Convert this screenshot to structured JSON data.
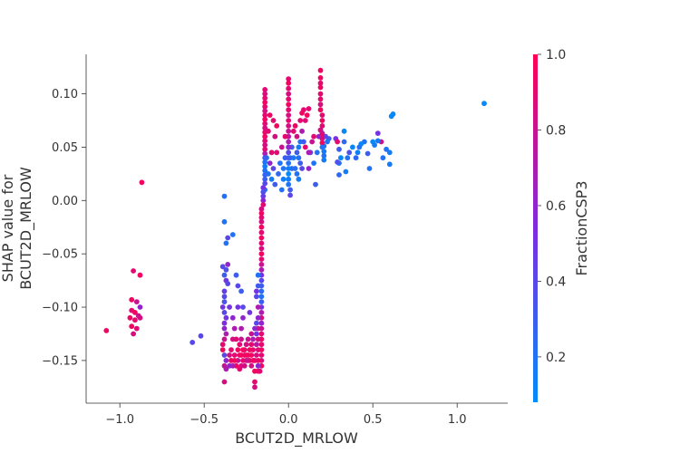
{
  "chart_data": {
    "type": "scatter",
    "xlabel": "BCUT2D_MRLOW",
    "ylabel_lines": [
      "SHAP value for",
      "BCUT2D_MRLOW"
    ],
    "xlim": [
      -1.2,
      1.3
    ],
    "ylim": [
      -0.19,
      0.137
    ],
    "xticks": [
      -1.0,
      -0.5,
      0.0,
      0.5,
      1.0
    ],
    "xtick_labels": [
      "−1.0",
      "−0.5",
      "0.0",
      "0.5",
      "1.0"
    ],
    "yticks": [
      0.1,
      0.05,
      0.0,
      -0.05,
      -0.1,
      -0.15
    ],
    "ytick_labels": [
      "0.10",
      "0.05",
      "0.00",
      "−0.05",
      "−0.10",
      "−0.15"
    ],
    "colorbar": {
      "label": "FractionCSP3",
      "range": [
        0.08,
        1.0
      ],
      "ticks": [
        1.0,
        0.8,
        0.6,
        0.4,
        0.2
      ],
      "tick_labels": [
        "1.0",
        "0.8",
        "0.6",
        "0.4",
        "0.2"
      ],
      "low_color": "#008bfb",
      "mid_color": "#7f2be0",
      "high_color": "#ff0052"
    },
    "points": [
      [
        1.16,
        0.091,
        0.1
      ],
      [
        0.61,
        0.079,
        0.1
      ],
      [
        0.62,
        0.081,
        0.1
      ],
      [
        0.6,
        0.045,
        0.15
      ],
      [
        0.58,
        0.048,
        0.2
      ],
      [
        0.6,
        0.034,
        0.15
      ],
      [
        0.55,
        0.055,
        0.8
      ],
      [
        0.56,
        0.04,
        0.2
      ],
      [
        0.53,
        0.056,
        0.15
      ],
      [
        0.5,
        0.055,
        0.1
      ],
      [
        0.51,
        0.052,
        0.15
      ],
      [
        0.48,
        0.03,
        0.2
      ],
      [
        0.47,
        0.044,
        0.3
      ],
      [
        0.53,
        0.063,
        0.5
      ],
      [
        0.45,
        0.055,
        0.2
      ],
      [
        0.43,
        0.053,
        0.1
      ],
      [
        0.42,
        0.05,
        0.2
      ],
      [
        0.41,
        0.045,
        0.15
      ],
      [
        0.4,
        0.04,
        0.25
      ],
      [
        0.38,
        0.05,
        0.1
      ],
      [
        0.36,
        0.045,
        0.35
      ],
      [
        0.35,
        0.04,
        0.2
      ],
      [
        0.34,
        0.027,
        0.15
      ],
      [
        0.33,
        0.065,
        0.1
      ],
      [
        0.33,
        0.055,
        0.25
      ],
      [
        0.3,
        0.035,
        0.2
      ],
      [
        0.31,
        0.04,
        0.1
      ],
      [
        0.3,
        0.048,
        0.3
      ],
      [
        0.29,
        0.036,
        0.35
      ],
      [
        0.3,
        0.024,
        0.25
      ],
      [
        0.28,
        0.058,
        0.5
      ],
      [
        0.29,
        0.055,
        0.9
      ],
      [
        0.24,
        0.058,
        0.3
      ],
      [
        0.23,
        0.055,
        0.2
      ],
      [
        0.22,
        0.06,
        0.4
      ],
      [
        0.21,
        0.051,
        0.2
      ],
      [
        0.2,
        0.063,
        0.5
      ],
      [
        0.19,
        0.066,
        0.8
      ],
      [
        0.15,
        0.06,
        0.9
      ],
      [
        0.14,
        0.055,
        0.8
      ],
      [
        0.13,
        0.045,
        0.4
      ],
      [
        0.15,
        0.035,
        0.2
      ],
      [
        0.16,
        0.015,
        0.3
      ],
      [
        0.12,
        0.045,
        0.7
      ],
      [
        0.17,
        0.045,
        0.2
      ],
      [
        0.18,
        0.06,
        0.6
      ],
      [
        0.12,
        0.03,
        0.6
      ],
      [
        0.1,
        0.05,
        0.9
      ],
      [
        0.1,
        0.075,
        0.9
      ],
      [
        0.09,
        0.085,
        0.9
      ],
      [
        0.11,
        0.08,
        0.95
      ],
      [
        0.12,
        0.086,
        0.9
      ],
      [
        0.08,
        0.065,
        0.7
      ],
      [
        0.07,
        0.055,
        0.2
      ],
      [
        0.06,
        0.05,
        0.15
      ],
      [
        0.05,
        0.045,
        0.3
      ],
      [
        0.06,
        0.04,
        0.2
      ],
      [
        0.07,
        0.035,
        0.3
      ],
      [
        0.08,
        0.03,
        0.4
      ],
      [
        0.09,
        0.055,
        0.3
      ],
      [
        0.05,
        0.06,
        0.85
      ],
      [
        0.04,
        0.07,
        0.95
      ],
      [
        0.03,
        0.065,
        0.9
      ],
      [
        0.02,
        0.05,
        0.3
      ],
      [
        0.03,
        0.04,
        0.15
      ],
      [
        0.04,
        0.03,
        0.2
      ],
      [
        0.05,
        0.025,
        0.2
      ],
      [
        0.06,
        0.02,
        0.15
      ],
      [
        0.02,
        0.03,
        0.25
      ],
      [
        0.01,
        0.04,
        0.2
      ],
      [
        0.0,
        0.05,
        0.4
      ],
      [
        0.07,
        0.075,
        0.9
      ],
      [
        0.08,
        0.082,
        0.95
      ],
      [
        0.19,
        0.122,
        0.95
      ],
      [
        0.19,
        0.115,
        0.95
      ],
      [
        0.19,
        0.11,
        0.9
      ],
      [
        0.19,
        0.106,
        0.95
      ],
      [
        0.19,
        0.1,
        0.9
      ],
      [
        0.19,
        0.095,
        0.9
      ],
      [
        0.19,
        0.09,
        0.85
      ],
      [
        0.19,
        0.085,
        0.95
      ],
      [
        0.2,
        0.08,
        0.9
      ],
      [
        0.2,
        0.075,
        0.95
      ],
      [
        0.2,
        0.07,
        0.9
      ],
      [
        0.19,
        0.066,
        0.85
      ],
      [
        0.2,
        0.062,
        0.9
      ],
      [
        0.2,
        0.058,
        0.85
      ],
      [
        0.2,
        0.054,
        0.95
      ],
      [
        0.2,
        0.05,
        0.2
      ],
      [
        0.21,
        0.046,
        0.15
      ],
      [
        0.21,
        0.042,
        0.2
      ],
      [
        0.21,
        0.038,
        0.15
      ],
      [
        0.0,
        0.114,
        0.9
      ],
      [
        0.0,
        0.11,
        0.95
      ],
      [
        0.0,
        0.105,
        0.9
      ],
      [
        0.0,
        0.1,
        0.85
      ],
      [
        0.0,
        0.095,
        0.9
      ],
      [
        0.0,
        0.09,
        0.95
      ],
      [
        0.0,
        0.085,
        0.9
      ],
      [
        0.0,
        0.08,
        0.85
      ],
      [
        0.0,
        0.075,
        0.9
      ],
      [
        0.0,
        0.07,
        0.85
      ],
      [
        0.0,
        0.065,
        0.8
      ],
      [
        0.0,
        0.06,
        0.75
      ],
      [
        0.0,
        0.055,
        0.7
      ],
      [
        0.0,
        0.05,
        0.6
      ],
      [
        0.0,
        0.045,
        0.4
      ],
      [
        0.0,
        0.04,
        0.3
      ],
      [
        0.0,
        0.035,
        0.2
      ],
      [
        0.0,
        0.03,
        0.15
      ],
      [
        0.0,
        0.025,
        0.1
      ],
      [
        0.0,
        0.02,
        0.15
      ],
      [
        0.0,
        0.015,
        0.2
      ],
      [
        0.01,
        0.01,
        0.3
      ],
      [
        0.01,
        0.005,
        0.4
      ],
      [
        -0.02,
        0.06,
        0.9
      ],
      [
        -0.02,
        0.04,
        0.3
      ],
      [
        -0.03,
        0.03,
        0.2
      ],
      [
        -0.03,
        0.02,
        0.15
      ],
      [
        -0.04,
        0.05,
        0.8
      ],
      [
        -0.04,
        0.01,
        0.2
      ],
      [
        -0.05,
        0.035,
        0.2
      ],
      [
        -0.06,
        0.025,
        0.25
      ],
      [
        -0.07,
        0.045,
        0.9
      ],
      [
        -0.08,
        0.015,
        0.3
      ],
      [
        -0.08,
        0.06,
        0.85
      ],
      [
        -0.09,
        0.03,
        0.4
      ],
      [
        -0.1,
        0.045,
        0.9
      ],
      [
        -0.1,
        0.02,
        0.15
      ],
      [
        -0.11,
        0.035,
        0.6
      ],
      [
        -0.12,
        0.025,
        0.2
      ],
      [
        -0.12,
        0.065,
        0.9
      ],
      [
        -0.13,
        0.04,
        0.2
      ],
      [
        -0.14,
        0.01,
        0.2
      ],
      [
        -0.11,
        0.08,
        0.95
      ],
      [
        -0.09,
        0.075,
        0.9
      ],
      [
        -0.07,
        0.07,
        0.95
      ],
      [
        -0.14,
        0.104,
        0.9
      ],
      [
        -0.14,
        0.1,
        0.85
      ],
      [
        -0.14,
        0.096,
        0.9
      ],
      [
        -0.14,
        0.092,
        0.95
      ],
      [
        -0.14,
        0.088,
        0.9
      ],
      [
        -0.14,
        0.084,
        0.85
      ],
      [
        -0.14,
        0.08,
        0.9
      ],
      [
        -0.14,
        0.076,
        0.95
      ],
      [
        -0.14,
        0.072,
        0.9
      ],
      [
        -0.14,
        0.068,
        0.85
      ],
      [
        -0.14,
        0.064,
        0.9
      ],
      [
        -0.14,
        0.06,
        0.95
      ],
      [
        -0.14,
        0.056,
        0.9
      ],
      [
        -0.14,
        0.052,
        0.85
      ],
      [
        -0.14,
        0.048,
        0.9
      ],
      [
        -0.14,
        0.044,
        0.7
      ],
      [
        -0.14,
        0.04,
        0.3
      ],
      [
        -0.14,
        0.036,
        0.2
      ],
      [
        -0.14,
        0.032,
        0.15
      ],
      [
        -0.14,
        0.028,
        0.2
      ],
      [
        -0.14,
        0.024,
        0.25
      ],
      [
        -0.14,
        0.02,
        0.3
      ],
      [
        -0.14,
        0.016,
        0.4
      ],
      [
        -0.15,
        0.012,
        0.5
      ],
      [
        -0.15,
        0.008,
        0.35
      ],
      [
        -0.15,
        0.004,
        0.45
      ],
      [
        -0.15,
        0.0,
        0.6
      ],
      [
        -0.15,
        -0.004,
        0.9
      ],
      [
        -0.16,
        -0.008,
        0.85
      ],
      [
        -0.16,
        -0.012,
        0.95
      ],
      [
        -0.16,
        -0.016,
        0.9
      ],
      [
        -0.16,
        -0.02,
        0.85
      ],
      [
        -0.16,
        -0.025,
        0.95
      ],
      [
        -0.16,
        -0.03,
        0.9
      ],
      [
        -0.16,
        -0.035,
        0.95
      ],
      [
        -0.16,
        -0.04,
        0.9
      ],
      [
        -0.16,
        -0.045,
        0.85
      ],
      [
        -0.16,
        -0.05,
        0.95
      ],
      [
        -0.16,
        -0.055,
        0.9
      ],
      [
        -0.16,
        -0.06,
        0.8
      ],
      [
        -0.16,
        -0.065,
        0.7
      ],
      [
        -0.16,
        -0.07,
        0.5
      ],
      [
        -0.16,
        -0.075,
        0.4
      ],
      [
        -0.16,
        -0.08,
        0.3
      ],
      [
        -0.16,
        -0.085,
        0.25
      ],
      [
        -0.16,
        -0.09,
        0.2
      ],
      [
        -0.16,
        -0.095,
        0.3
      ],
      [
        -0.16,
        -0.1,
        0.5
      ],
      [
        -0.16,
        -0.105,
        0.7
      ],
      [
        -0.16,
        -0.11,
        0.85
      ],
      [
        -0.16,
        -0.115,
        0.6
      ],
      [
        -0.16,
        -0.12,
        0.8
      ],
      [
        -0.16,
        -0.125,
        0.9
      ],
      [
        -0.16,
        -0.13,
        0.95
      ],
      [
        -0.16,
        -0.135,
        0.9
      ],
      [
        -0.16,
        -0.14,
        0.95
      ],
      [
        -0.16,
        -0.145,
        0.9
      ],
      [
        -0.16,
        -0.15,
        0.85
      ],
      [
        -0.16,
        -0.155,
        0.95
      ],
      [
        -0.17,
        -0.16,
        0.9
      ],
      [
        -0.18,
        -0.1,
        0.7
      ],
      [
        -0.18,
        -0.11,
        0.6
      ],
      [
        -0.18,
        -0.12,
        0.8
      ],
      [
        -0.18,
        -0.13,
        0.85
      ],
      [
        -0.18,
        -0.14,
        0.9
      ],
      [
        -0.18,
        -0.15,
        0.95
      ],
      [
        -0.18,
        -0.16,
        0.9
      ],
      [
        -0.18,
        -0.155,
        0.6
      ],
      [
        -0.19,
        -0.115,
        0.4
      ],
      [
        -0.19,
        -0.125,
        0.5
      ],
      [
        -0.19,
        -0.135,
        0.75
      ],
      [
        -0.19,
        -0.145,
        0.85
      ],
      [
        -0.2,
        -0.15,
        0.9
      ],
      [
        -0.2,
        -0.16,
        0.95
      ],
      [
        -0.2,
        -0.17,
        0.9
      ],
      [
        -0.2,
        -0.175,
        0.85
      ],
      [
        -0.18,
        -0.08,
        0.3
      ],
      [
        -0.19,
        -0.09,
        0.4
      ],
      [
        -0.18,
        -0.07,
        0.2
      ],
      [
        -0.19,
        -0.085,
        0.5
      ],
      [
        -0.2,
        -0.12,
        0.6
      ],
      [
        -0.21,
        -0.13,
        0.7
      ],
      [
        -0.21,
        -0.14,
        0.9
      ],
      [
        -0.21,
        -0.15,
        0.95
      ],
      [
        -0.22,
        -0.125,
        0.8
      ],
      [
        -0.22,
        -0.135,
        0.9
      ],
      [
        -0.22,
        -0.145,
        0.95
      ],
      [
        -0.22,
        -0.155,
        0.85
      ],
      [
        -0.23,
        -0.105,
        0.5
      ],
      [
        -0.23,
        -0.14,
        0.95
      ],
      [
        -0.23,
        -0.15,
        0.9
      ],
      [
        -0.24,
        -0.13,
        0.8
      ],
      [
        -0.24,
        -0.145,
        0.95
      ],
      [
        -0.24,
        -0.15,
        0.9
      ],
      [
        -0.25,
        -0.135,
        0.85
      ],
      [
        -0.25,
        -0.145,
        0.95
      ],
      [
        -0.25,
        -0.15,
        0.8
      ],
      [
        -0.26,
        -0.14,
        0.9
      ],
      [
        -0.26,
        -0.145,
        0.95
      ],
      [
        -0.26,
        -0.155,
        0.85
      ],
      [
        -0.27,
        -0.1,
        0.4
      ],
      [
        -0.27,
        -0.11,
        0.6
      ],
      [
        -0.27,
        -0.14,
        0.95
      ],
      [
        -0.27,
        -0.15,
        0.9
      ],
      [
        -0.28,
        -0.085,
        0.3
      ],
      [
        -0.28,
        -0.12,
        0.7
      ],
      [
        -0.28,
        -0.13,
        0.8
      ],
      [
        -0.28,
        -0.145,
        0.95
      ],
      [
        -0.28,
        -0.155,
        0.85
      ],
      [
        -0.29,
        -0.135,
        0.9
      ],
      [
        -0.29,
        -0.145,
        0.95
      ],
      [
        -0.29,
        -0.158,
        0.9
      ],
      [
        -0.3,
        -0.08,
        0.4
      ],
      [
        -0.3,
        -0.1,
        0.5
      ],
      [
        -0.3,
        -0.14,
        0.95
      ],
      [
        -0.3,
        -0.15,
        0.8
      ],
      [
        -0.31,
        -0.07,
        0.3
      ],
      [
        -0.31,
        -0.13,
        0.9
      ],
      [
        -0.31,
        -0.155,
        0.95
      ],
      [
        -0.32,
        -0.12,
        0.7
      ],
      [
        -0.32,
        -0.145,
        0.9
      ],
      [
        -0.32,
        -0.15,
        0.95
      ],
      [
        -0.33,
        -0.11,
        0.6
      ],
      [
        -0.33,
        -0.13,
        0.85
      ],
      [
        -0.33,
        -0.155,
        0.7
      ],
      [
        -0.34,
        -0.14,
        0.9
      ],
      [
        -0.34,
        -0.15,
        0.95
      ],
      [
        -0.35,
        -0.1,
        0.5
      ],
      [
        -0.35,
        -0.145,
        0.85
      ],
      [
        -0.35,
        -0.155,
        0.6
      ],
      [
        -0.33,
        -0.032,
        0.2
      ],
      [
        -0.36,
        -0.035,
        0.4
      ],
      [
        -0.37,
        -0.04,
        0.2
      ],
      [
        -0.38,
        -0.02,
        0.2
      ],
      [
        -0.38,
        0.004,
        0.2
      ],
      [
        -0.36,
        -0.06,
        0.6
      ],
      [
        -0.37,
        -0.065,
        0.35
      ],
      [
        -0.38,
        -0.07,
        0.3
      ],
      [
        -0.39,
        -0.062,
        0.4
      ],
      [
        -0.37,
        -0.075,
        0.5
      ],
      [
        -0.36,
        -0.078,
        0.4
      ],
      [
        -0.38,
        -0.085,
        0.45
      ],
      [
        -0.38,
        -0.09,
        0.4
      ],
      [
        -0.38,
        -0.095,
        0.35
      ],
      [
        -0.39,
        -0.1,
        0.5
      ],
      [
        -0.38,
        -0.105,
        0.4
      ],
      [
        -0.37,
        -0.11,
        0.5
      ],
      [
        -0.38,
        -0.115,
        0.55
      ],
      [
        -0.38,
        -0.12,
        0.6
      ],
      [
        -0.37,
        -0.125,
        0.7
      ],
      [
        -0.38,
        -0.13,
        0.8
      ],
      [
        -0.39,
        -0.135,
        0.9
      ],
      [
        -0.39,
        -0.14,
        0.95
      ],
      [
        -0.38,
        -0.145,
        0.4
      ],
      [
        -0.37,
        -0.15,
        0.6
      ],
      [
        -0.38,
        -0.155,
        0.8
      ],
      [
        -0.37,
        -0.158,
        0.7
      ],
      [
        -0.38,
        -0.17,
        0.85
      ],
      [
        -0.52,
        -0.127,
        0.4
      ],
      [
        -0.57,
        -0.133,
        0.4
      ],
      [
        -0.87,
        0.017,
        0.95
      ],
      [
        -0.92,
        -0.066,
        0.9
      ],
      [
        -0.88,
        -0.07,
        0.95
      ],
      [
        -0.93,
        -0.093,
        0.95
      ],
      [
        -0.9,
        -0.095,
        0.8
      ],
      [
        -0.88,
        -0.1,
        0.6
      ],
      [
        -0.93,
        -0.103,
        0.9
      ],
      [
        -0.91,
        -0.105,
        0.95
      ],
      [
        -0.89,
        -0.108,
        0.8
      ],
      [
        -0.94,
        -0.11,
        0.95
      ],
      [
        -0.91,
        -0.112,
        0.9
      ],
      [
        -0.88,
        -0.11,
        0.85
      ],
      [
        -0.93,
        -0.118,
        0.95
      ],
      [
        -0.9,
        -0.12,
        0.9
      ],
      [
        -0.92,
        -0.125,
        0.85
      ],
      [
        -1.08,
        -0.122,
        0.95
      ]
    ]
  }
}
